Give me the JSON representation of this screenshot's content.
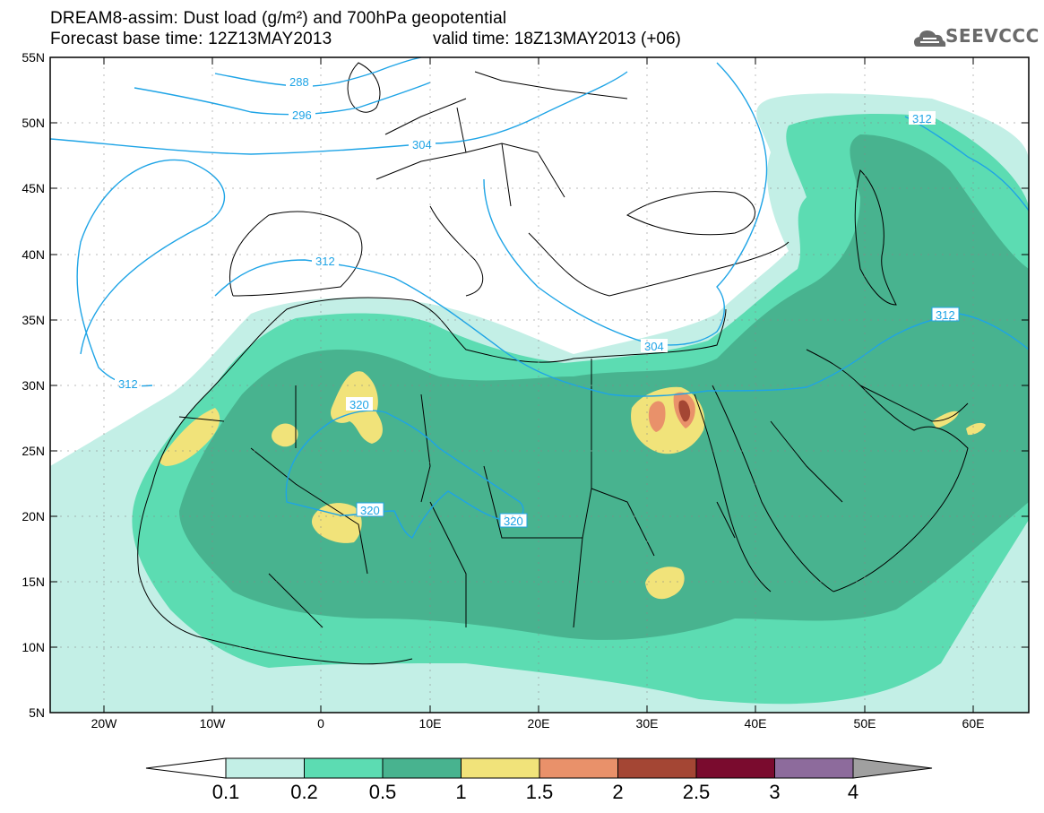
{
  "header": {
    "title_line1": "DREAM8-assim: Dust load (g/m²) and 700hPa geopotential",
    "title_line2": "Forecast base time: 12Z13MAY2013",
    "valid_time": "valid time: 18Z13MAY2013 (+06)",
    "logo_text": "SEEVCCC"
  },
  "axes": {
    "lat_labels": [
      "55N",
      "50N",
      "45N",
      "40N",
      "35N",
      "30N",
      "25N",
      "20N",
      "15N",
      "10N",
      "5N"
    ],
    "lon_labels": [
      "20W",
      "10W",
      "0",
      "10E",
      "20E",
      "30E",
      "40E",
      "50E",
      "60E"
    ]
  },
  "contour_labels": [
    "288",
    "296",
    "304",
    "312",
    "304",
    "312",
    "312",
    "320",
    "320",
    "320",
    "312"
  ],
  "colorbar": {
    "ticks": [
      "0.1",
      "0.2",
      "0.5",
      "1",
      "1.5",
      "2",
      "2.5",
      "3",
      "4"
    ],
    "colors": [
      "#c3efe6",
      "#5cdcb2",
      "#48b38f",
      "#f1e37a",
      "#e9916a",
      "#a44634",
      "#7a0b2e",
      "#8d6b9c"
    ],
    "under_color": "#ffffff",
    "over_color": "#a0a0a0"
  },
  "colors": {
    "contour": "#1ea4e6",
    "coast": "#000000"
  }
}
